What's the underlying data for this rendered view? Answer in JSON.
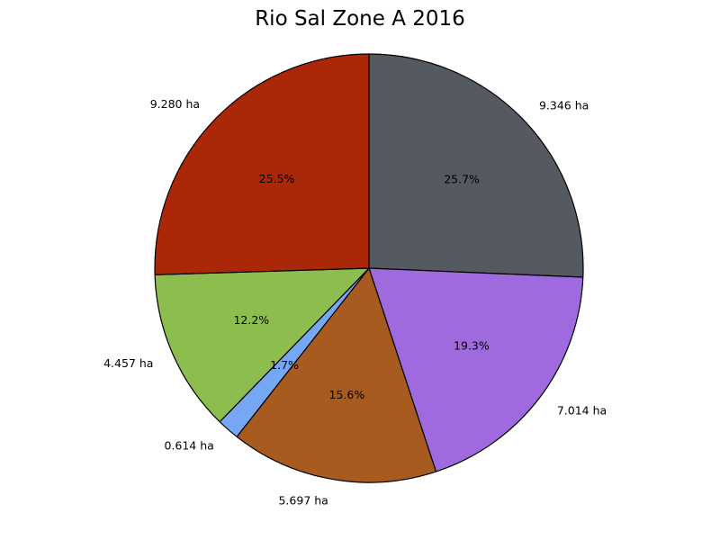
{
  "chart_data": {
    "type": "pie",
    "title": "Rio Sal Zone A 2016",
    "slices": [
      {
        "label": "9.346 ha",
        "value": 9.346,
        "percent_label": "25.7%",
        "color": "#555960"
      },
      {
        "label": "7.014 ha",
        "value": 7.014,
        "percent_label": "19.3%",
        "color": "#a06adf"
      },
      {
        "label": "5.697 ha",
        "value": 5.697,
        "percent_label": "15.6%",
        "color": "#a85b1e"
      },
      {
        "label": "0.614 ha",
        "value": 0.614,
        "percent_label": "1.7%",
        "color": "#76a7f5"
      },
      {
        "label": "4.457 ha",
        "value": 4.457,
        "percent_label": "12.2%",
        "color": "#8dbd4e"
      },
      {
        "label": "9.280 ha",
        "value": 9.28,
        "percent_label": "25.5%",
        "color": "#aa2808"
      }
    ],
    "start_angle_deg": 90,
    "direction": "clockwise",
    "edge_color": "#000000"
  }
}
